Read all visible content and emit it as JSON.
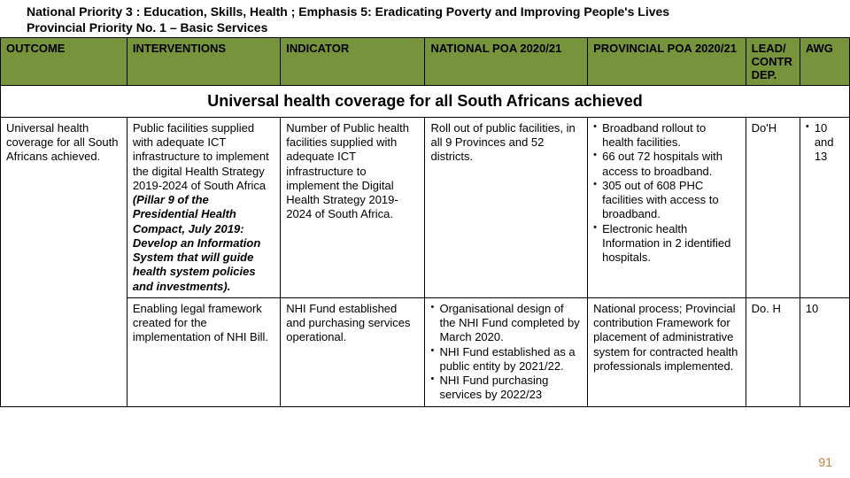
{
  "header": {
    "line1": "National Priority 3 : Education, Skills, Health ; Emphasis 5: Eradicating Poverty and Improving People's Lives",
    "line2": "Provincial Priority No. 1 – Basic Services"
  },
  "columns": {
    "outcome": "OUTCOME",
    "interventions": "INTERVENTIONS",
    "indicator": "INDICATOR",
    "national": "NATIONAL POA 2020/21",
    "provincial": "PROVINCIAL POA 2020/21",
    "lead": "LEAD/ CONTR DEP.",
    "awg": "AWG"
  },
  "section_title": "Universal health coverage for all South Africans achieved",
  "rows": [
    {
      "outcome": "Universal health coverage for all South Africans achieved.",
      "intervention_main": "Public facilities supplied with adequate ICT infrastructure to implement the digital Health Strategy 2019-2024 of South Africa ",
      "intervention_italic": "(Pillar 9 of the Presidential Health Compact, July 2019: Develop an Information System that will guide health system policies and investments).",
      "indicator": "Number of Public health facilities supplied with adequate ICT infrastructure to implement the Digital Health Strategy 2019-2024 of South Africa.",
      "national": "Roll out of public facilities, in all 9 Provinces and 52 districts.",
      "provincial": [
        "Broadband rollout to health facilities.",
        "66 out 72 hospitals with access to broadband.",
        "305 out of 608 PHC facilities with access to broadband.",
        "Electronic health Information in 2 identified hospitals."
      ],
      "lead": "Do'H",
      "awg": [
        "10 and 13"
      ]
    },
    {
      "intervention_main": "Enabling legal framework created for the implementation of NHI Bill.",
      "indicator": "NHI Fund established and purchasing services operational.",
      "national": [
        "Organisational design of the NHI Fund completed by March 2020.",
        "NHI Fund established as a public entity by 2021/22.",
        "NHI Fund purchasing services by 2022/23"
      ],
      "provincial_text": "National process; Provincial contribution Framework for placement of administrative system for contracted health professionals implemented.",
      "lead": "Do. H",
      "awg_text": "10"
    }
  ],
  "page_number": "91",
  "colors": {
    "header_bg": "#77933c",
    "page_num": "#cc7a2e"
  }
}
